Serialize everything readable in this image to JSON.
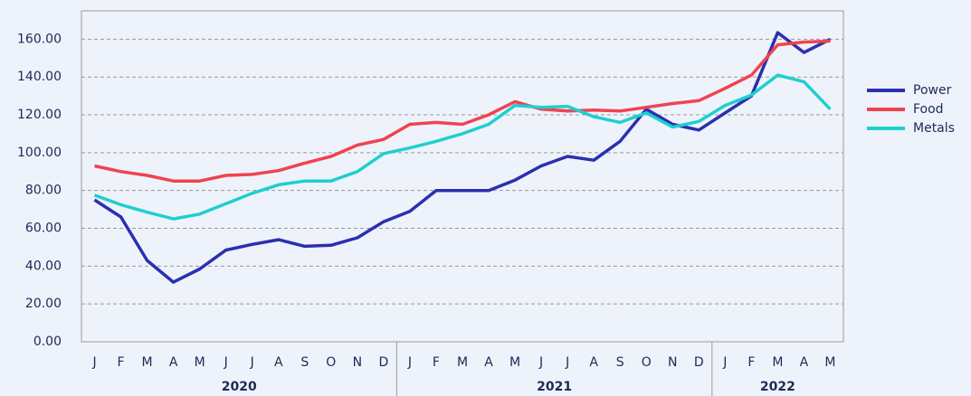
{
  "chart_data": {
    "type": "line",
    "categories": [
      "J",
      "F",
      "M",
      "A",
      "M",
      "J",
      "J",
      "A",
      "S",
      "O",
      "N",
      "D",
      "J",
      "F",
      "M",
      "A",
      "M",
      "J",
      "J",
      "A",
      "S",
      "O",
      "N",
      "D",
      "J",
      "F",
      "M",
      "A",
      "M"
    ],
    "group_labels": [
      "2020",
      "2021",
      "2022"
    ],
    "group_sizes": [
      12,
      12,
      5
    ],
    "series": [
      {
        "name": "Power",
        "color": "#2b2fb0",
        "values": [
          75,
          66,
          43,
          31.5,
          38.5,
          48.5,
          51.5,
          54,
          50.5,
          51,
          55,
          63.5,
          69,
          80,
          80,
          80,
          85.5,
          93,
          98,
          96,
          106,
          123,
          115,
          112,
          121,
          130,
          163.5,
          153,
          160
        ]
      },
      {
        "name": "Food",
        "color": "#f0434f",
        "values": [
          93,
          90,
          88,
          85,
          85,
          88,
          88.5,
          90.5,
          94.5,
          98,
          104,
          107,
          115,
          116,
          115,
          120,
          127,
          123,
          122,
          122.5,
          122,
          124,
          126,
          127.5,
          134,
          141,
          157,
          158.5,
          159
        ]
      },
      {
        "name": "Metals",
        "color": "#1fcfcf",
        "values": [
          77.5,
          72.5,
          68.5,
          65,
          67.5,
          73,
          78.5,
          83,
          85,
          85,
          90,
          99.5,
          102.5,
          106,
          110,
          115,
          125,
          124,
          124.5,
          119,
          116,
          121,
          113.5,
          116.5,
          125,
          130.5,
          141,
          137.5,
          123
        ]
      }
    ],
    "ylim": [
      0,
      175
    ],
    "yticks": [
      {
        "value": 0,
        "label": "0.00"
      },
      {
        "value": 20,
        "label": "20.00"
      },
      {
        "value": 40,
        "label": "40.00"
      },
      {
        "value": 60,
        "label": "60.00"
      },
      {
        "value": 80,
        "label": "80.00"
      },
      {
        "value": 100,
        "label": "100.00"
      },
      {
        "value": 120,
        "label": "120.00"
      },
      {
        "value": 140,
        "label": "140.00"
      },
      {
        "value": 160,
        "label": "160.00"
      }
    ],
    "grid": true,
    "legend": "right"
  }
}
